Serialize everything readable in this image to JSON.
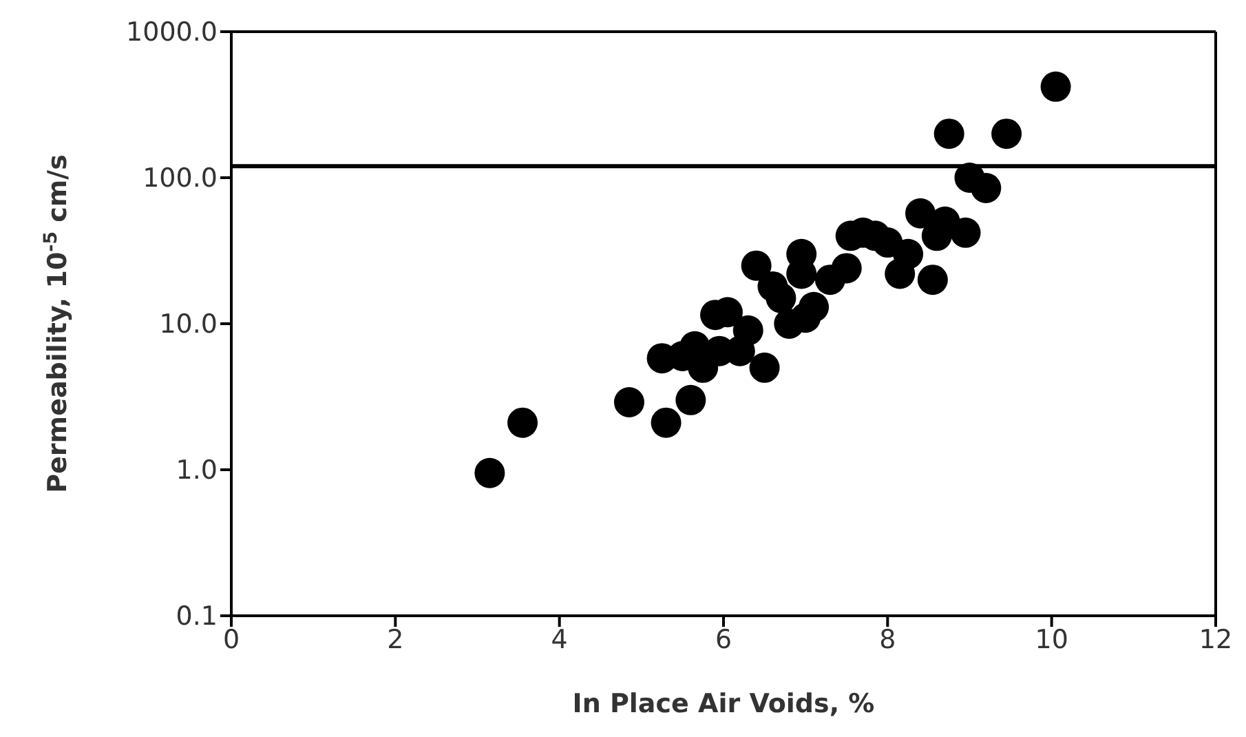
{
  "chart_data": {
    "type": "scatter",
    "xlabel": "In Place Air Voids, %",
    "ylabel": "Permeability, 10$^{-5}$ cm/s",
    "log": "y",
    "marker": "circle",
    "xlim": [
      0,
      12
    ],
    "xticks": [
      0,
      2,
      4,
      6,
      8,
      10,
      12
    ],
    "ylim": [
      0.1,
      1000
    ],
    "yticks": [
      {
        "value": 0.1,
        "label": "0.1"
      },
      {
        "value": 1,
        "label": "1.0"
      },
      {
        "value": 10,
        "label": "10.0"
      },
      {
        "value": 100,
        "label": "100.0"
      },
      {
        "value": 1000,
        "label": "1000.0"
      }
    ],
    "ref_lines": [
      {
        "axis": "y",
        "value": 120,
        "color": "#000000"
      }
    ],
    "series": [
      {
        "color": "#000000",
        "x": [
          3.15,
          3.55,
          4.85,
          5.3,
          5.25,
          5.6,
          5.5,
          5.65,
          5.75,
          5.9,
          6.2,
          6.3,
          6.4,
          6.5,
          6.6,
          6.7,
          6.8,
          6.95,
          6.95,
          7.0,
          7.1,
          7.3,
          7.5,
          7.55,
          7.7,
          7.85,
          8.0,
          8.15,
          8.25,
          8.4,
          8.55,
          8.6,
          8.7,
          8.75,
          8.95,
          9.0,
          9.2,
          9.45,
          10.05,
          5.95,
          6.05
        ],
        "values": [
          0.95,
          2.1,
          2.9,
          2.1,
          5.8,
          3.0,
          6,
          7,
          5,
          11.5,
          6.5,
          9,
          25,
          5,
          18,
          15,
          10,
          30,
          22,
          11,
          13,
          20,
          24,
          40,
          42,
          40,
          36,
          22,
          30,
          57,
          20,
          40,
          50,
          200,
          42,
          100,
          85,
          200,
          420,
          6.5,
          12
        ]
      }
    ]
  }
}
